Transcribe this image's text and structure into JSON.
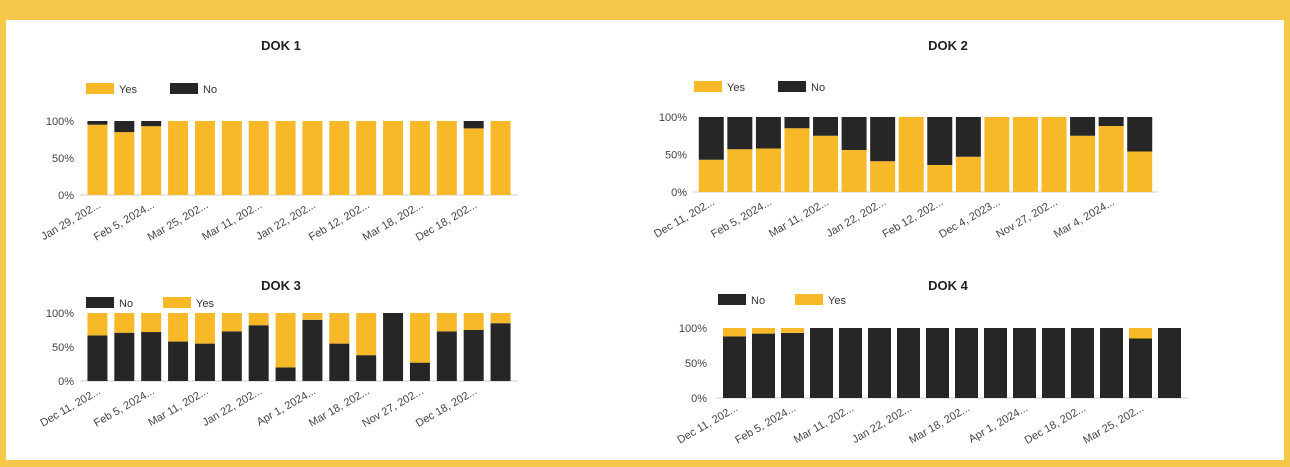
{
  "colors": {
    "yes": "#f7b928",
    "no": "#262626",
    "axis": "#cfcfcf",
    "page": "#f6c94a"
  },
  "chart_data": [
    {
      "type": "bar",
      "stacked": true,
      "title": "DOK 1",
      "legend_placement": "top-left",
      "y_ticks": [
        "100%",
        "50%",
        "0%"
      ],
      "ylim": [
        0,
        100
      ],
      "x_tick_labels": [
        "Jan 29, 202...",
        "Feb 5, 2024...",
        "Mar 25, 202...",
        "Mar 11, 202...",
        "Jan 22, 202...",
        "Feb 12, 202...",
        "Mar 18, 202...",
        "Dec 18, 202..."
      ],
      "series": [
        {
          "name": "Yes",
          "color": "#f7b928",
          "values": [
            95,
            85,
            93,
            100,
            100,
            100,
            100,
            100,
            100,
            100,
            100,
            100,
            100,
            100,
            90,
            100
          ]
        },
        {
          "name": "No",
          "color": "#262626",
          "values": [
            5,
            15,
            7,
            0,
            0,
            0,
            0,
            0,
            0,
            0,
            0,
            0,
            0,
            0,
            10,
            0
          ]
        }
      ]
    },
    {
      "type": "bar",
      "stacked": true,
      "title": "DOK 2",
      "legend_placement": "top-left",
      "y_ticks": [
        "100%",
        "50%",
        "0%"
      ],
      "ylim": [
        0,
        100
      ],
      "x_tick_labels": [
        "Dec 11, 202...",
        "Feb 5, 2024...",
        "Mar 11, 202...",
        "Jan 22, 202...",
        "Feb 12, 202...",
        "Dec 4, 2023...",
        "Nov 27, 202...",
        "Mar 4, 2024..."
      ],
      "series": [
        {
          "name": "Yes",
          "color": "#f7b928",
          "values": [
            43,
            57,
            58,
            85,
            75,
            56,
            41,
            100,
            36,
            47,
            100,
            100,
            100,
            75,
            88,
            54
          ]
        },
        {
          "name": "No",
          "color": "#262626",
          "values": [
            57,
            43,
            42,
            15,
            25,
            44,
            59,
            0,
            64,
            53,
            0,
            0,
            0,
            25,
            12,
            46
          ]
        }
      ]
    },
    {
      "type": "bar",
      "stacked": true,
      "title": "DOK 3",
      "legend_placement": "top-left",
      "y_ticks": [
        "100%",
        "50%",
        "0%"
      ],
      "ylim": [
        0,
        100
      ],
      "x_tick_labels": [
        "Dec 11, 202...",
        "Feb 5, 2024...",
        "Mar 11, 202...",
        "Jan 22, 202...",
        "Apr 1, 2024...",
        "Mar 18, 202...",
        "Nov 27, 202...",
        "Dec 18, 202..."
      ],
      "series": [
        {
          "name": "No",
          "color": "#262626",
          "values": [
            67,
            71,
            72,
            58,
            55,
            73,
            82,
            20,
            90,
            55,
            38,
            100,
            27,
            73,
            75,
            85
          ]
        },
        {
          "name": "Yes",
          "color": "#f7b928",
          "values": [
            33,
            29,
            28,
            42,
            45,
            27,
            18,
            80,
            10,
            45,
            62,
            0,
            73,
            27,
            25,
            15
          ]
        }
      ]
    },
    {
      "type": "bar",
      "stacked": true,
      "title": "DOK 4",
      "legend_placement": "top-left",
      "y_ticks": [
        "100%",
        "50%",
        "0%"
      ],
      "ylim": [
        0,
        100
      ],
      "x_tick_labels": [
        "Dec 11, 202...",
        "Feb 5, 2024...",
        "Mar 11, 202...",
        "Jan 22, 202...",
        "Mar 18, 202...",
        "Apr 1, 2024...",
        "Dec 18, 202...",
        "Mar 25, 202..."
      ],
      "series": [
        {
          "name": "No",
          "color": "#262626",
          "values": [
            88,
            92,
            93,
            100,
            100,
            100,
            100,
            100,
            100,
            100,
            100,
            100,
            100,
            100,
            85,
            100
          ]
        },
        {
          "name": "Yes",
          "color": "#f7b928",
          "values": [
            12,
            8,
            7,
            0,
            0,
            0,
            0,
            0,
            0,
            0,
            0,
            0,
            0,
            0,
            15,
            0
          ]
        }
      ]
    }
  ]
}
